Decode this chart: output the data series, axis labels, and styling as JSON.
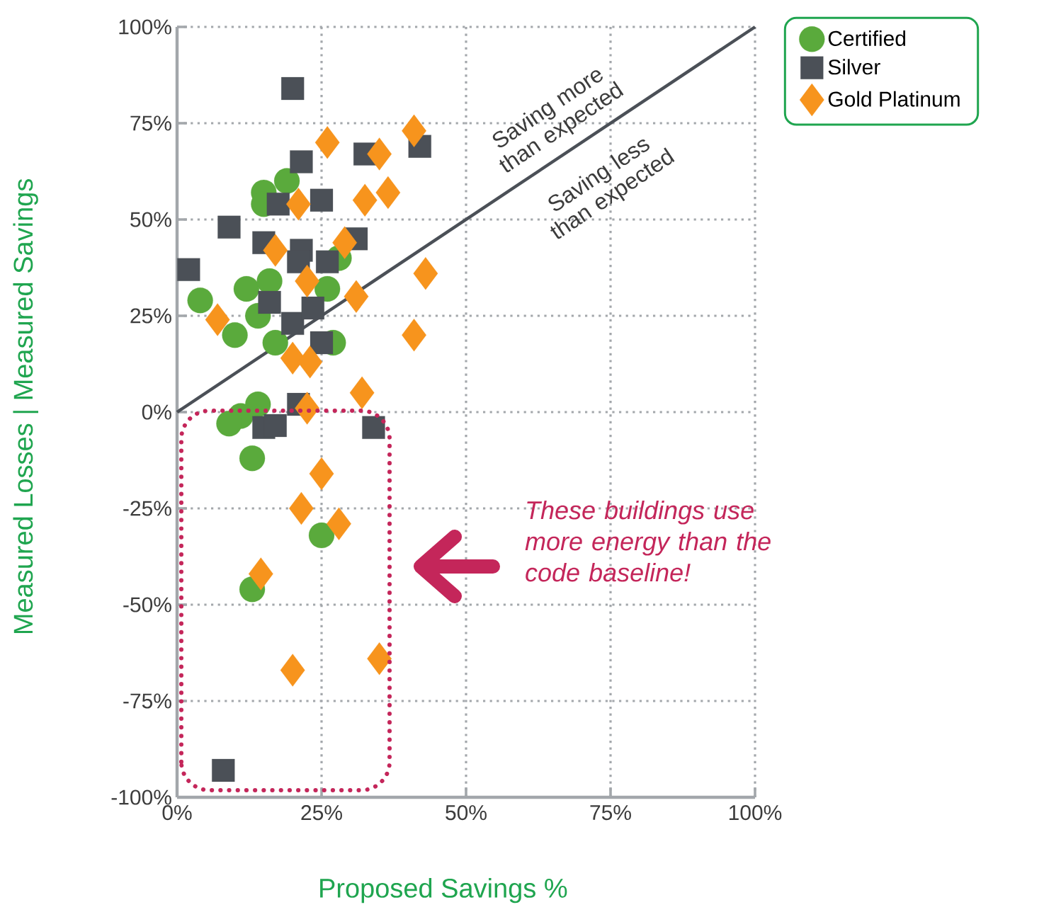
{
  "chart_data": {
    "type": "scatter",
    "xlabel": "Proposed Savings %",
    "ylabel": "Measured Losses | Measured Savings",
    "xlim": [
      0,
      100
    ],
    "ylim": [
      -100,
      100
    ],
    "xticks": [
      {
        "value": 0,
        "label": "0%"
      },
      {
        "value": 25,
        "label": "25%"
      },
      {
        "value": 50,
        "label": "50%"
      },
      {
        "value": 75,
        "label": "75%"
      },
      {
        "value": 100,
        "label": "100%"
      }
    ],
    "yticks": [
      {
        "value": -100,
        "label": "-100%"
      },
      {
        "value": -75,
        "label": "-75%"
      },
      {
        "value": -50,
        "label": "-50%"
      },
      {
        "value": -25,
        "label": "-25%"
      },
      {
        "value": 0,
        "label": "0%"
      },
      {
        "value": 25,
        "label": "25%"
      },
      {
        "value": 50,
        "label": "50%"
      },
      {
        "value": 75,
        "label": "75%"
      },
      {
        "value": 100,
        "label": "100%"
      }
    ],
    "grid": true,
    "legend": "top right",
    "series": [
      {
        "name": "Certified",
        "color": "#5aaa3c",
        "marker": "circle",
        "x": [
          4,
          12,
          16,
          14,
          10,
          17,
          26,
          27,
          28,
          14,
          11,
          19,
          15,
          15,
          9,
          13,
          25,
          13
        ],
        "values": [
          29,
          32,
          34,
          25,
          20,
          18,
          32,
          18,
          40,
          2,
          -1,
          60,
          57,
          54,
          -3,
          -12,
          -32,
          -46
        ]
      },
      {
        "name": "Silver",
        "color": "#4b5057",
        "marker": "square",
        "x": [
          20,
          21.5,
          9,
          17.5,
          25,
          32.5,
          42,
          2,
          15,
          21.5,
          21,
          31,
          26,
          16,
          20,
          23.5,
          25,
          21,
          15,
          17,
          34,
          8
        ],
        "values": [
          84,
          65,
          48,
          54,
          55,
          67,
          69,
          37,
          44,
          42,
          39,
          45,
          39,
          28.5,
          23,
          27,
          18,
          2,
          -4,
          -3.5,
          -4,
          -93
        ]
      },
      {
        "name": "Gold Platinum",
        "color": "#f7941d",
        "marker": "diamond",
        "x": [
          26,
          41,
          35,
          32.5,
          36.5,
          21,
          29,
          17,
          22.5,
          31,
          43,
          41,
          7,
          20,
          23,
          32,
          22.5,
          25,
          21.5,
          28,
          14.5,
          20,
          35
        ],
        "values": [
          70,
          73,
          67,
          55,
          57,
          54,
          44,
          42,
          34,
          30,
          36,
          20,
          24,
          14,
          13,
          5,
          1,
          -16,
          -25,
          -29,
          -42,
          -67,
          -64
        ]
      },
      {
        "type": "line",
        "color": "#4b5057",
        "line_style": "solid",
        "marker": "none",
        "x": [
          0,
          100
        ],
        "values": [
          0,
          100
        ]
      }
    ],
    "annotations": [
      "Saving more than expected",
      "Saving less than expected",
      "These buildings use more energy than the code baseline!"
    ]
  }
}
